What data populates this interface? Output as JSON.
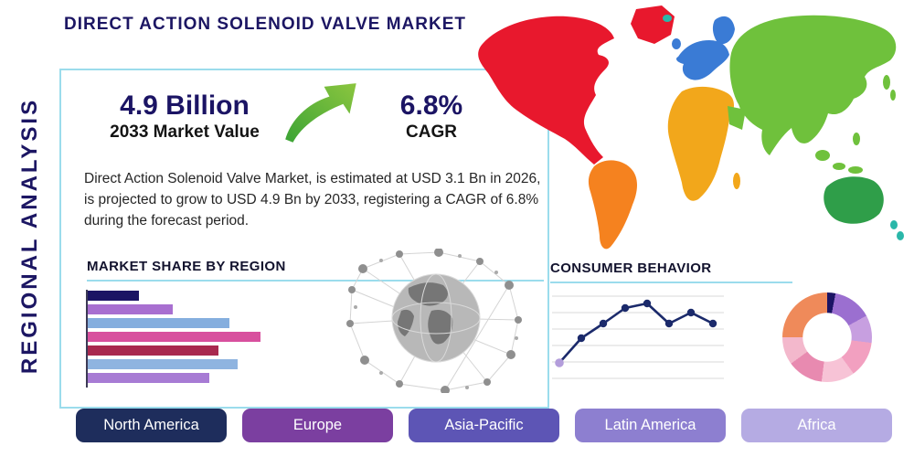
{
  "page_title": "DIRECT ACTION SOLENOID VALVE MARKET",
  "side_label": "REGIONAL ANALYSIS",
  "stats": {
    "market_value": "4.9 Billion",
    "market_value_caption": "2033 Market Value",
    "cagr_value": "6.8%",
    "cagr_caption": "CAGR"
  },
  "description": "Direct Action Solenoid Valve Market, is estimated at USD 3.1 Bn in 2026, is projected to grow to USD 4.9 Bn by 2033, registering a CAGR of 6.8% during the forecast period.",
  "colors": {
    "title": "#1c1663",
    "accent_border": "#9bdcec",
    "stat_value": "#1b1464",
    "body_text": "#262626",
    "arrow_green_dark": "#3aa335",
    "arrow_green_light": "#8dc63f"
  },
  "chart_data": [
    {
      "id": "market-share-by-region",
      "type": "bar",
      "orientation": "horizontal",
      "title": "MARKET SHARE BY REGION",
      "values": [
        18,
        30,
        50,
        61,
        46,
        53,
        43
      ],
      "colors": [
        "#1b1464",
        "#a86fd0",
        "#85aede",
        "#d8509e",
        "#a8294f",
        "#8fb4e0",
        "#a77bd4"
      ],
      "axis_labels_visible": false
    },
    {
      "id": "consumer-behavior",
      "type": "line",
      "title": "CONSUMER BEHAVIOR",
      "x": [
        1,
        2,
        3,
        4,
        5,
        6,
        7,
        8
      ],
      "values": [
        15,
        42,
        58,
        75,
        80,
        58,
        70,
        58
      ],
      "line_color": "#1b2a6b",
      "first_point_color": "#b39ddb",
      "grid": true
    },
    {
      "id": "regional-share-donut",
      "type": "pie",
      "donut": true,
      "segments": [
        {
          "color": "#1b1464",
          "value": 3
        },
        {
          "color": "#9b6fd0",
          "value": 14
        },
        {
          "color": "#c79fe0",
          "value": 10
        },
        {
          "color": "#f2a0c0",
          "value": 13
        },
        {
          "color": "#f7c3d6",
          "value": 12
        },
        {
          "color": "#e88ab0",
          "value": 13
        },
        {
          "color": "#f3b8cc",
          "value": 10
        },
        {
          "color": "#ef8a5a",
          "value": 25
        }
      ]
    }
  ],
  "map": {
    "region_colors": {
      "north_america": "#e8182d",
      "greenland": "#e8182d",
      "south_america": "#f5821f",
      "europe": "#3a7bd5",
      "africa": "#f2a71b",
      "asia": "#6fc13c",
      "oceania": "#2f9e49",
      "islands": "#2ab7a9"
    }
  },
  "region_buttons": [
    {
      "label": "North America",
      "color": "#1e2d5c"
    },
    {
      "label": "Europe",
      "color": "#7b3fa0"
    },
    {
      "label": "Asia-Pacific",
      "color": "#5d55b5"
    },
    {
      "label": "Latin America",
      "color": "#8d7fd0"
    },
    {
      "label": "Africa",
      "color": "#b5abe3"
    }
  ]
}
